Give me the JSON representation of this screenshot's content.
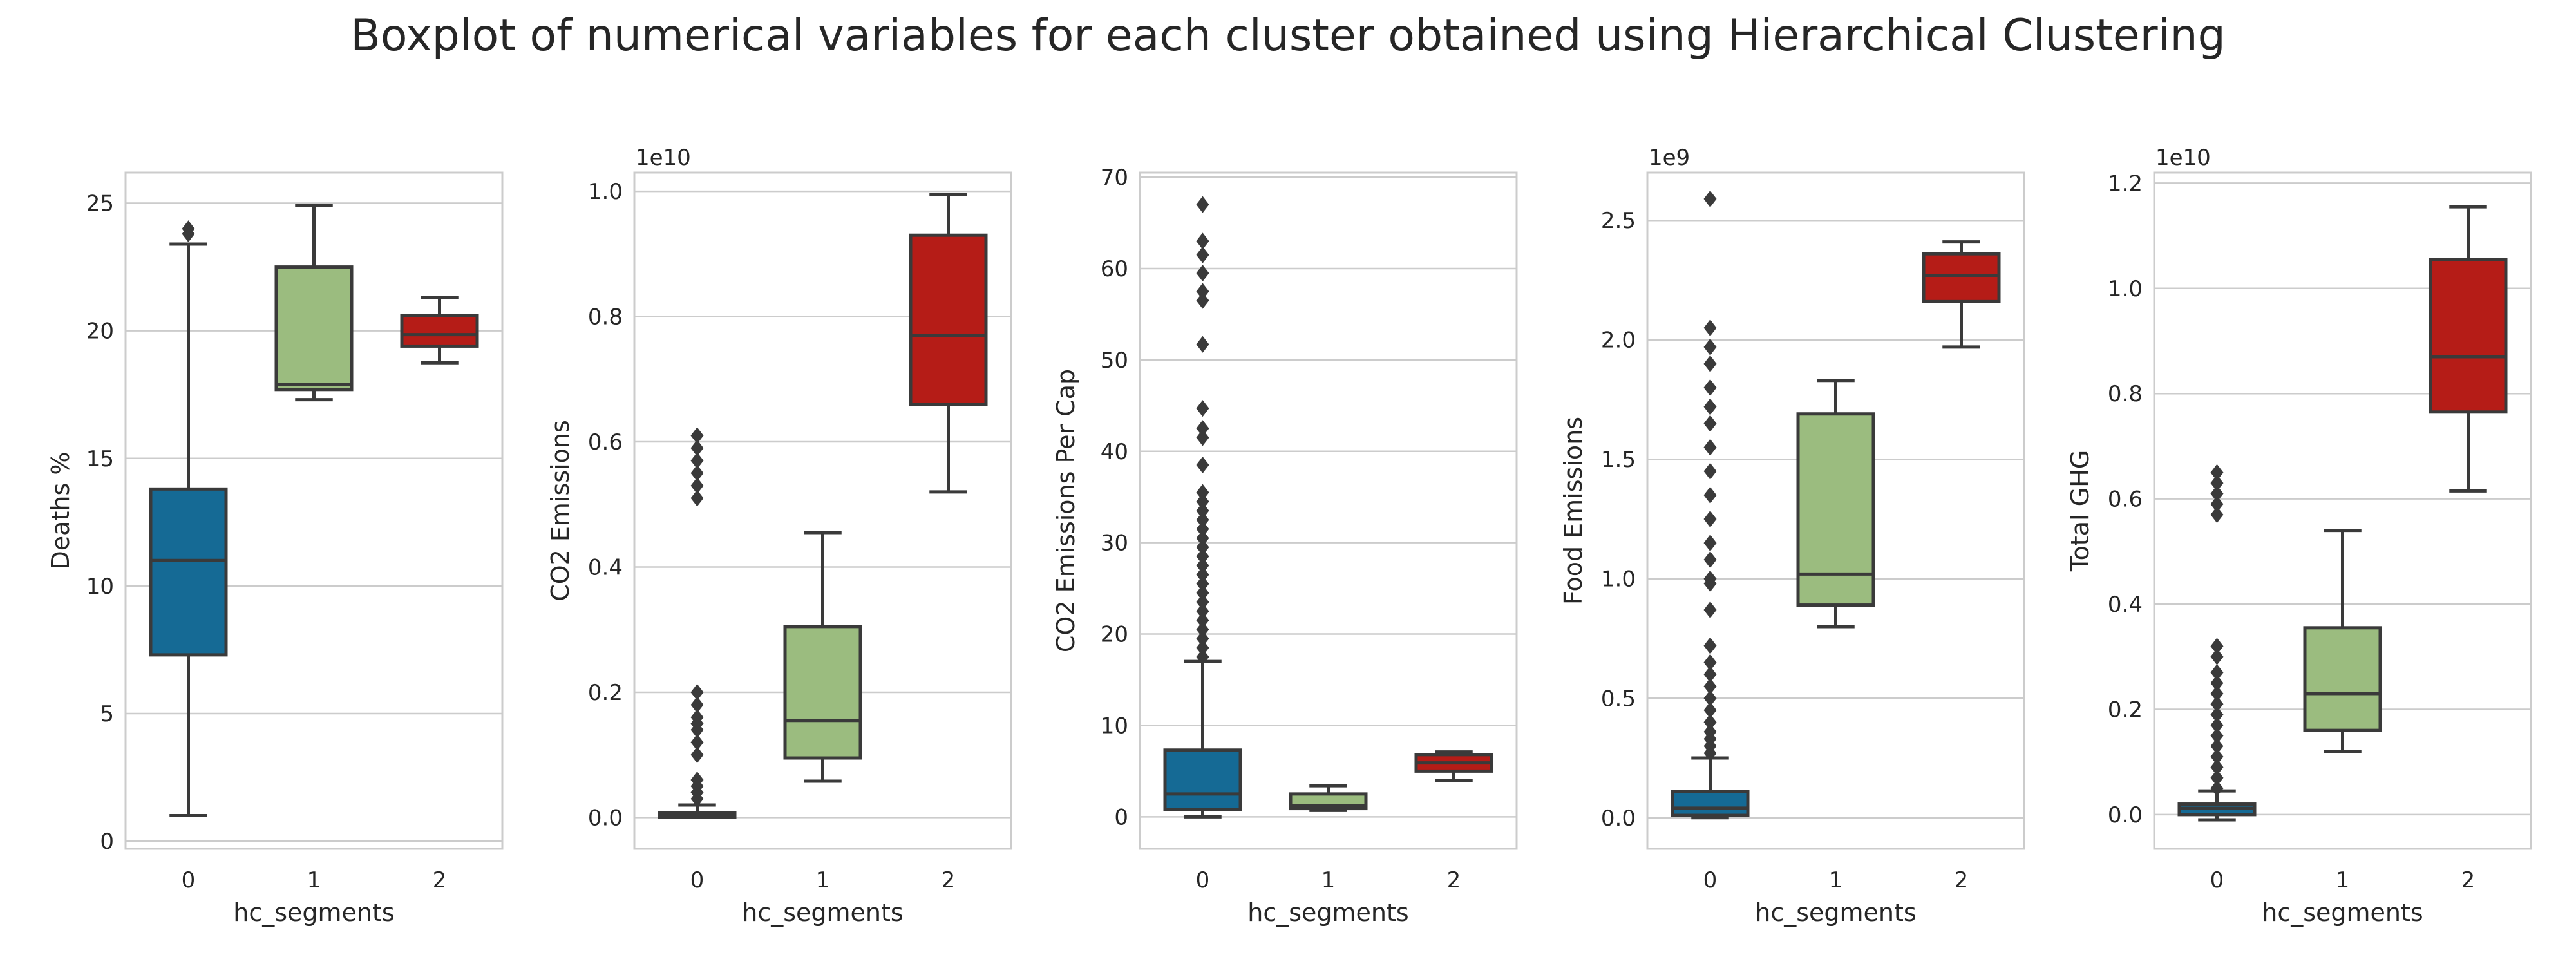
{
  "figure": {
    "title": "Boxplot of numerical variables for each cluster obtained using Hierarchical Clustering"
  },
  "colors": {
    "cluster_0": "#156a95",
    "cluster_1": "#9bbc7f",
    "cluster_2": "#b51c17",
    "box_edge": "#3a3a3a",
    "grid": "#cccccc",
    "axes_frame": "#cccccc"
  },
  "chart_data": [
    {
      "type": "box",
      "xlabel": "hc_segments",
      "ylabel": "Deaths %",
      "offset_text": "",
      "categories": [
        "0",
        "1",
        "2"
      ],
      "ylim": [
        -0.3,
        26.2
      ],
      "yticks": [
        0,
        5,
        10,
        15,
        20,
        25
      ],
      "ytick_labels": [
        "0",
        "5",
        "10",
        "15",
        "20",
        "25"
      ],
      "grid": true,
      "boxes": [
        {
          "q1": 7.3,
          "median": 11.0,
          "q3": 13.8,
          "whislo": 1.0,
          "whishi": 23.4,
          "fliers": [
            23.8,
            24.0
          ]
        },
        {
          "q1": 17.7,
          "median": 17.9,
          "q3": 22.5,
          "whislo": 17.3,
          "whishi": 24.9,
          "fliers": []
        },
        {
          "q1": 19.4,
          "median": 19.85,
          "q3": 20.6,
          "whislo": 18.75,
          "whishi": 21.3,
          "fliers": []
        }
      ]
    },
    {
      "type": "box",
      "xlabel": "hc_segments",
      "ylabel": "CO2 Emissions",
      "offset_text": "1e10",
      "categories": [
        "0",
        "1",
        "2"
      ],
      "ylim": [
        -0.05,
        1.03
      ],
      "yticks": [
        0.0,
        0.2,
        0.4,
        0.6,
        0.8,
        1.0
      ],
      "ytick_labels": [
        "0.0",
        "0.2",
        "0.4",
        "0.6",
        "0.8",
        "1.0"
      ],
      "grid": true,
      "boxes": [
        {
          "q1": 0.0,
          "median": 0.003,
          "q3": 0.008,
          "whislo": 0.0,
          "whishi": 0.02,
          "fliers": [
            0.03,
            0.04,
            0.05,
            0.06,
            0.1,
            0.12,
            0.14,
            0.15,
            0.16,
            0.18,
            0.2,
            0.51,
            0.53,
            0.55,
            0.57,
            0.59,
            0.61
          ]
        },
        {
          "q1": 0.095,
          "median": 0.155,
          "q3": 0.305,
          "whislo": 0.058,
          "whishi": 0.455,
          "fliers": []
        },
        {
          "q1": 0.66,
          "median": 0.77,
          "q3": 0.93,
          "whislo": 0.52,
          "whishi": 0.995,
          "fliers": []
        }
      ]
    },
    {
      "type": "box",
      "xlabel": "hc_segments",
      "ylabel": "CO2 Emissions Per Cap",
      "offset_text": "",
      "categories": [
        "0",
        "1",
        "2"
      ],
      "ylim": [
        -3.5,
        70.5
      ],
      "yticks": [
        0,
        10,
        20,
        30,
        40,
        50,
        60,
        70
      ],
      "ytick_labels": [
        "0",
        "10",
        "20",
        "30",
        "40",
        "50",
        "60",
        "70"
      ],
      "grid": true,
      "boxes": [
        {
          "q1": 0.8,
          "median": 2.5,
          "q3": 7.3,
          "whislo": 0.0,
          "whishi": 17.0,
          "fliers": [
            17.5,
            18.5,
            19.5,
            20.5,
            21.5,
            22.5,
            23.5,
            24.5,
            25.5,
            26.5,
            27.5,
            28.5,
            29.5,
            30.5,
            31.5,
            32.5,
            33.5,
            34.5,
            35.5,
            38.5,
            41.5,
            42.5,
            44.7,
            51.7,
            56.5,
            57.5,
            59.5,
            61.5,
            63.0,
            67.0
          ]
        },
        {
          "q1": 0.9,
          "median": 1.2,
          "q3": 2.5,
          "whislo": 0.7,
          "whishi": 3.4,
          "fliers": []
        },
        {
          "q1": 5.0,
          "median": 5.9,
          "q3": 6.8,
          "whislo": 4.0,
          "whishi": 7.1,
          "fliers": []
        }
      ]
    },
    {
      "type": "box",
      "xlabel": "hc_segments",
      "ylabel": "Food Emissions",
      "offset_text": "1e9",
      "categories": [
        "0",
        "1",
        "2"
      ],
      "ylim": [
        -0.13,
        2.7
      ],
      "yticks": [
        0.0,
        0.5,
        1.0,
        1.5,
        2.0,
        2.5
      ],
      "ytick_labels": [
        "0.0",
        "0.5",
        "1.0",
        "1.5",
        "2.0",
        "2.5"
      ],
      "grid": true,
      "boxes": [
        {
          "q1": 0.01,
          "median": 0.04,
          "q3": 0.11,
          "whislo": 0.0,
          "whishi": 0.25,
          "fliers": [
            0.27,
            0.3,
            0.33,
            0.36,
            0.4,
            0.45,
            0.5,
            0.55,
            0.6,
            0.65,
            0.72,
            0.87,
            0.98,
            1.0,
            1.08,
            1.15,
            1.25,
            1.35,
            1.45,
            1.55,
            1.65,
            1.72,
            1.8,
            1.9,
            1.97,
            2.05,
            2.59
          ]
        },
        {
          "q1": 0.89,
          "median": 1.02,
          "q3": 1.69,
          "whislo": 0.8,
          "whishi": 1.83,
          "fliers": []
        },
        {
          "q1": 2.16,
          "median": 2.27,
          "q3": 2.36,
          "whislo": 1.97,
          "whishi": 2.41,
          "fliers": []
        }
      ]
    },
    {
      "type": "box",
      "xlabel": "hc_segments",
      "ylabel": "Total GHG",
      "offset_text": "1e10",
      "categories": [
        "0",
        "1",
        "2"
      ],
      "ylim": [
        -0.065,
        1.22
      ],
      "yticks": [
        0.0,
        0.2,
        0.4,
        0.6,
        0.8,
        1.0,
        1.2
      ],
      "ytick_labels": [
        "0.0",
        "0.2",
        "0.4",
        "0.6",
        "0.8",
        "1.0",
        "1.2"
      ],
      "grid": true,
      "boxes": [
        {
          "q1": 0.0,
          "median": 0.012,
          "q3": 0.02,
          "whislo": -0.01,
          "whishi": 0.045,
          "fliers": [
            0.05,
            0.07,
            0.09,
            0.11,
            0.13,
            0.15,
            0.17,
            0.19,
            0.21,
            0.23,
            0.25,
            0.27,
            0.3,
            0.32,
            0.57,
            0.59,
            0.61,
            0.63,
            0.65
          ]
        },
        {
          "q1": 0.16,
          "median": 0.23,
          "q3": 0.355,
          "whislo": 0.12,
          "whishi": 0.54,
          "fliers": []
        },
        {
          "q1": 0.765,
          "median": 0.87,
          "q3": 1.055,
          "whislo": 0.615,
          "whishi": 1.155,
          "fliers": []
        }
      ]
    }
  ]
}
